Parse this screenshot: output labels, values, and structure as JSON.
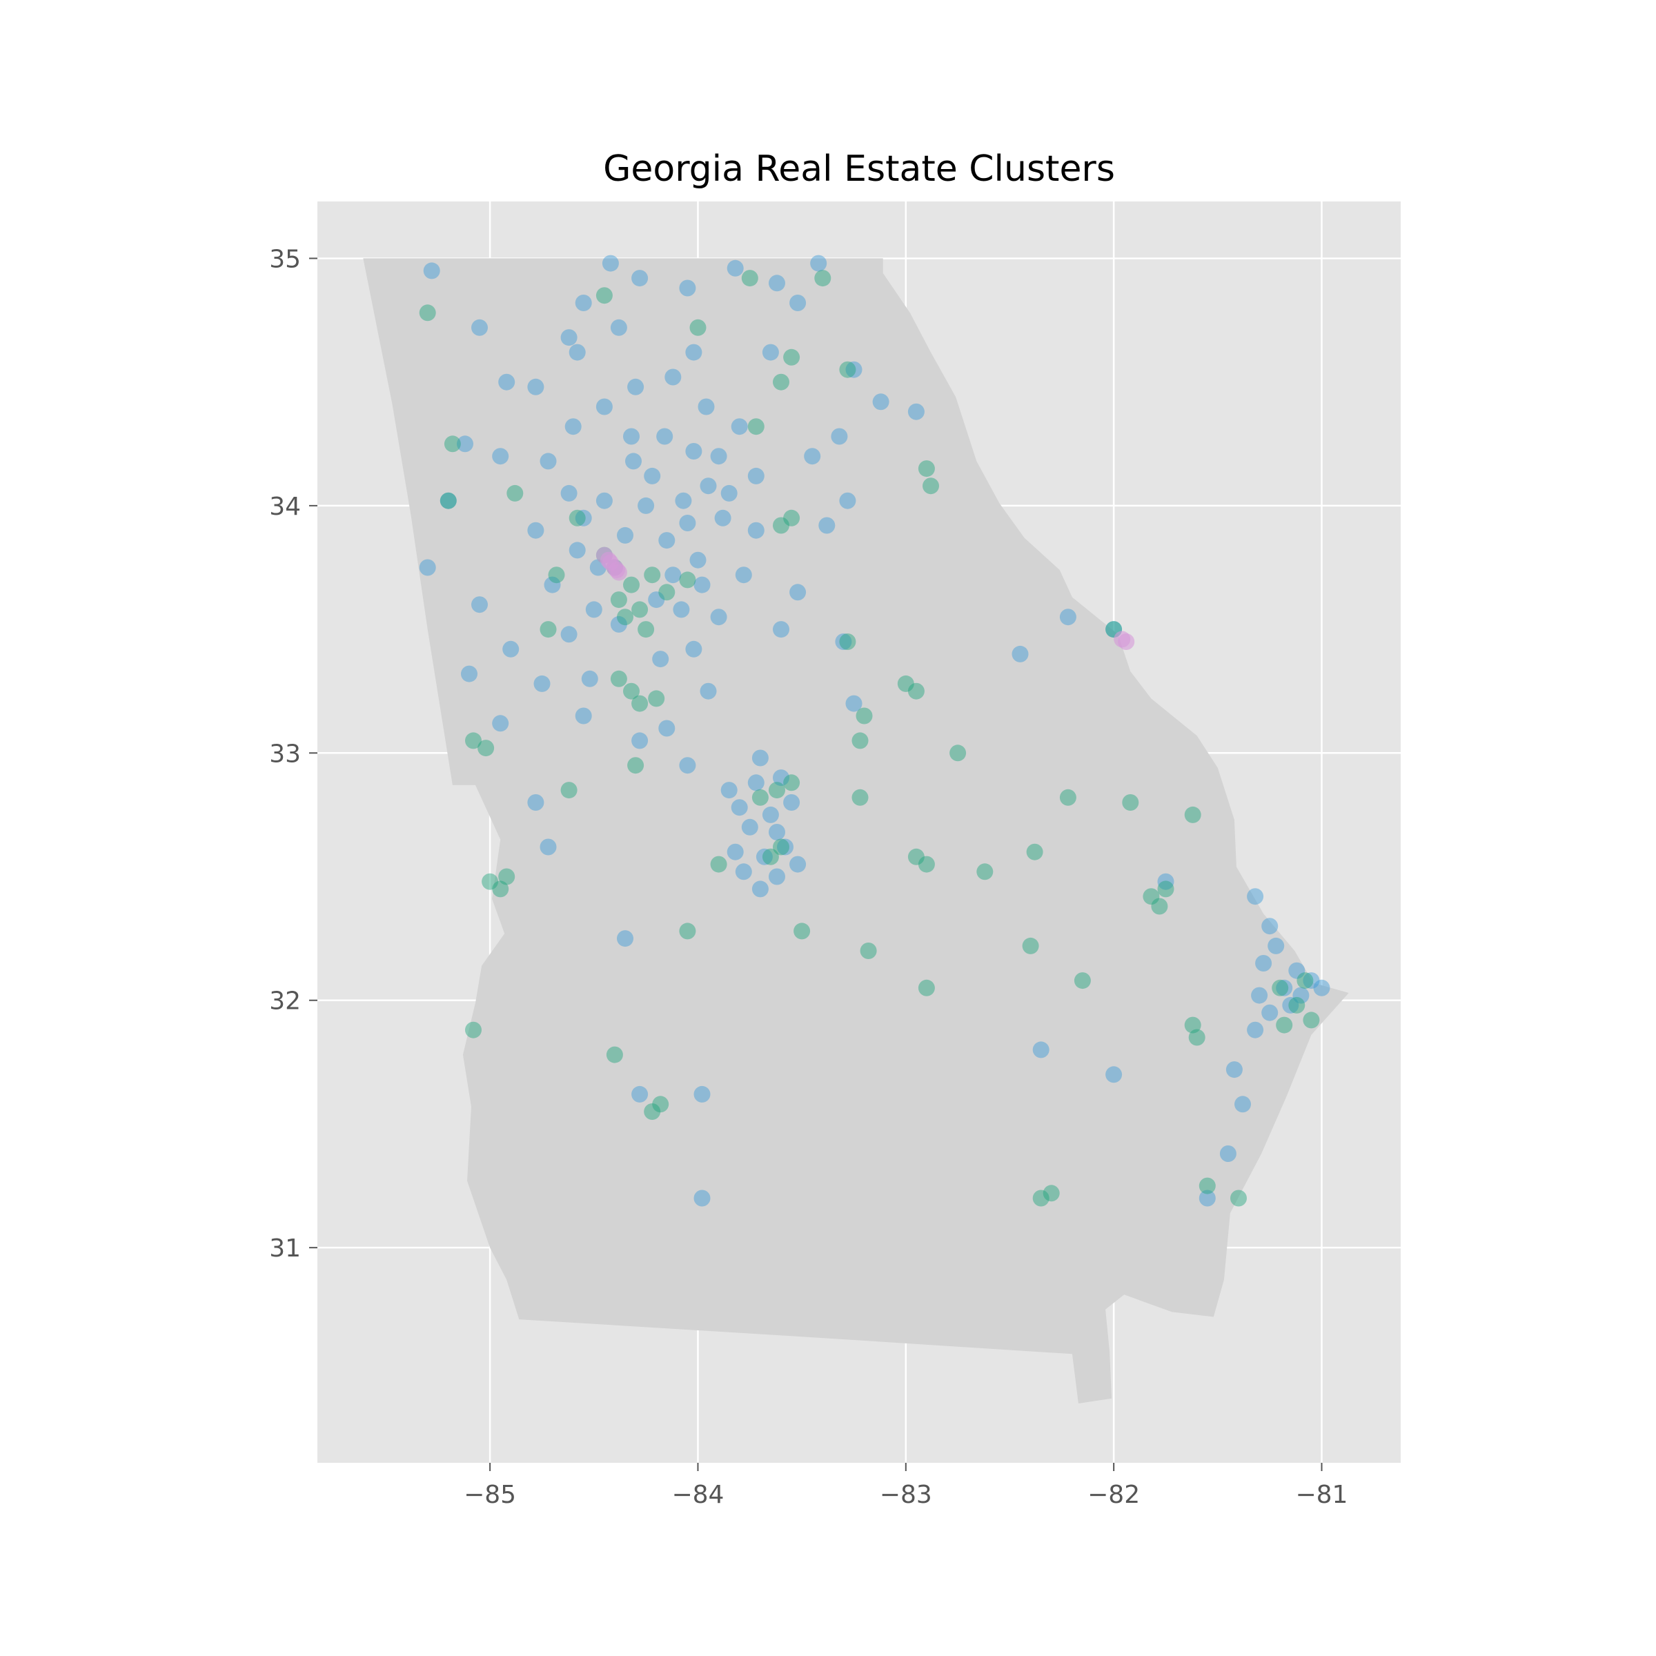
{
  "chart_data": {
    "type": "scatter",
    "title": "Georgia Real Estate Clusters",
    "xlabel": "",
    "ylabel": "",
    "xlim": [
      -85.83,
      -80.62
    ],
    "ylim": [
      30.13,
      35.23
    ],
    "xticks": [
      -85,
      -84,
      -83,
      -82,
      -81
    ],
    "yticks": [
      31,
      32,
      33,
      34,
      35
    ],
    "xtick_labels": [
      "−85",
      "−84",
      "−83",
      "−82",
      "−81"
    ],
    "ytick_labels": [
      "31",
      "32",
      "33",
      "34",
      "35"
    ],
    "grid": true,
    "legend": "none",
    "colors": {
      "background": "#e5e5e5",
      "state_fill": "#d3d3d3",
      "grid": "#ffffff",
      "cluster_blue": "#3a98d8",
      "cluster_green": "#1fa37c",
      "cluster_pink": "#d59ad9"
    },
    "state_outline": [
      [
        -85.61,
        35.0
      ],
      [
        -83.11,
        35.0
      ],
      [
        -83.11,
        34.94
      ],
      [
        -82.98,
        34.78
      ],
      [
        -82.88,
        34.62
      ],
      [
        -82.76,
        34.44
      ],
      [
        -82.66,
        34.18
      ],
      [
        -82.55,
        34.01
      ],
      [
        -82.43,
        33.87
      ],
      [
        -82.26,
        33.74
      ],
      [
        -82.2,
        33.63
      ],
      [
        -81.98,
        33.48
      ],
      [
        -81.92,
        33.33
      ],
      [
        -81.82,
        33.22
      ],
      [
        -81.6,
        33.07
      ],
      [
        -81.5,
        32.94
      ],
      [
        -81.42,
        32.73
      ],
      [
        -81.41,
        32.54
      ],
      [
        -81.28,
        32.35
      ],
      [
        -81.13,
        32.2
      ],
      [
        -81.04,
        32.07
      ],
      [
        -80.87,
        32.03
      ],
      [
        -81.05,
        31.86
      ],
      [
        -81.17,
        31.61
      ],
      [
        -81.29,
        31.38
      ],
      [
        -81.44,
        31.14
      ],
      [
        -81.47,
        30.87
      ],
      [
        -81.52,
        30.72
      ],
      [
        -81.72,
        30.74
      ],
      [
        -81.95,
        30.81
      ],
      [
        -82.04,
        30.75
      ],
      [
        -82.02,
        30.58
      ],
      [
        -82.01,
        30.39
      ],
      [
        -82.17,
        30.37
      ],
      [
        -82.2,
        30.57
      ],
      [
        -83.5,
        30.64
      ],
      [
        -84.86,
        30.71
      ],
      [
        -84.92,
        30.87
      ],
      [
        -85.0,
        31.0
      ],
      [
        -85.11,
        31.27
      ],
      [
        -85.09,
        31.57
      ],
      [
        -85.13,
        31.78
      ],
      [
        -85.07,
        31.99
      ],
      [
        -85.04,
        32.14
      ],
      [
        -84.93,
        32.27
      ],
      [
        -84.99,
        32.41
      ],
      [
        -84.95,
        32.65
      ],
      [
        -85.07,
        32.87
      ],
      [
        -85.18,
        32.87
      ],
      [
        -85.3,
        33.5
      ],
      [
        -85.38,
        33.96
      ],
      [
        -85.47,
        34.41
      ],
      [
        -85.61,
        35.0
      ]
    ],
    "series": [
      {
        "color": "blue",
        "points": [
          [
            -84.22,
            34.12
          ],
          [
            -84.07,
            34.02
          ],
          [
            -83.95,
            34.08
          ],
          [
            -84.05,
            33.93
          ],
          [
            -84.15,
            33.86
          ],
          [
            -84.0,
            33.78
          ],
          [
            -83.88,
            33.95
          ],
          [
            -84.25,
            34.0
          ],
          [
            -84.35,
            33.88
          ],
          [
            -84.31,
            34.18
          ],
          [
            -84.16,
            34.28
          ],
          [
            -84.02,
            34.22
          ],
          [
            -83.9,
            34.2
          ],
          [
            -83.85,
            34.05
          ],
          [
            -84.45,
            34.02
          ],
          [
            -84.55,
            33.95
          ],
          [
            -84.62,
            34.05
          ],
          [
            -84.58,
            33.82
          ],
          [
            -84.48,
            33.75
          ],
          [
            -84.12,
            33.72
          ],
          [
            -83.98,
            33.68
          ],
          [
            -84.08,
            33.58
          ],
          [
            -84.2,
            33.62
          ],
          [
            -84.38,
            33.52
          ],
          [
            -84.5,
            33.58
          ],
          [
            -84.62,
            33.48
          ],
          [
            -84.7,
            33.68
          ],
          [
            -84.78,
            33.9
          ],
          [
            -84.72,
            34.18
          ],
          [
            -84.6,
            34.32
          ],
          [
            -84.45,
            34.4
          ],
          [
            -84.3,
            34.48
          ],
          [
            -84.12,
            34.52
          ],
          [
            -83.96,
            34.4
          ],
          [
            -83.8,
            34.32
          ],
          [
            -83.72,
            34.12
          ],
          [
            -83.72,
            33.9
          ],
          [
            -83.78,
            33.72
          ],
          [
            -83.9,
            33.55
          ],
          [
            -84.02,
            33.42
          ],
          [
            -84.18,
            33.38
          ],
          [
            -84.02,
            34.62
          ],
          [
            -84.38,
            34.72
          ],
          [
            -84.58,
            34.62
          ],
          [
            -84.92,
            34.5
          ],
          [
            -84.95,
            34.2
          ],
          [
            -85.12,
            34.25
          ],
          [
            -85.2,
            34.02
          ],
          [
            -85.3,
            33.75
          ],
          [
            -85.05,
            33.6
          ],
          [
            -84.9,
            33.42
          ],
          [
            -84.75,
            33.28
          ],
          [
            -84.95,
            33.12
          ],
          [
            -84.55,
            33.15
          ],
          [
            -84.15,
            33.1
          ],
          [
            -83.95,
            33.25
          ],
          [
            -83.6,
            33.5
          ],
          [
            -83.52,
            33.65
          ],
          [
            -83.3,
            33.45
          ],
          [
            -83.38,
            33.92
          ],
          [
            -83.28,
            34.02
          ],
          [
            -83.45,
            34.2
          ],
          [
            -83.32,
            34.28
          ],
          [
            -83.12,
            34.42
          ],
          [
            -82.95,
            34.38
          ],
          [
            -83.25,
            34.55
          ],
          [
            -83.65,
            34.62
          ],
          [
            -83.52,
            34.82
          ],
          [
            -83.42,
            34.98
          ],
          [
            -83.62,
            34.9
          ],
          [
            -83.82,
            34.96
          ],
          [
            -84.05,
            34.88
          ],
          [
            -84.28,
            34.92
          ],
          [
            -84.42,
            34.98
          ],
          [
            -84.55,
            34.82
          ],
          [
            -85.28,
            34.95
          ],
          [
            -85.05,
            34.72
          ],
          [
            -84.78,
            34.48
          ],
          [
            -84.62,
            34.68
          ],
          [
            -84.32,
            34.28
          ],
          [
            -83.72,
            32.88
          ],
          [
            -83.65,
            32.75
          ],
          [
            -83.68,
            32.58
          ],
          [
            -83.62,
            32.5
          ],
          [
            -83.58,
            32.62
          ],
          [
            -83.75,
            32.7
          ],
          [
            -83.55,
            32.8
          ],
          [
            -83.78,
            32.52
          ],
          [
            -83.7,
            32.45
          ],
          [
            -83.82,
            32.6
          ],
          [
            -83.62,
            32.68
          ],
          [
            -83.6,
            32.9
          ],
          [
            -83.85,
            32.85
          ],
          [
            -83.52,
            32.55
          ],
          [
            -83.8,
            32.78
          ],
          [
            -83.7,
            32.98
          ],
          [
            -81.18,
            32.05
          ],
          [
            -81.1,
            32.02
          ],
          [
            -81.25,
            31.95
          ],
          [
            -81.05,
            32.08
          ],
          [
            -81.28,
            32.15
          ],
          [
            -81.22,
            32.22
          ],
          [
            -81.15,
            31.98
          ],
          [
            -81.3,
            32.02
          ],
          [
            -81.12,
            32.12
          ],
          [
            -81.0,
            32.05
          ],
          [
            -81.32,
            31.88
          ],
          [
            -81.42,
            31.72
          ],
          [
            -81.55,
            31.2
          ],
          [
            -81.45,
            31.38
          ],
          [
            -81.38,
            31.58
          ],
          [
            -81.25,
            32.3
          ],
          [
            -81.32,
            32.42
          ],
          [
            -81.75,
            32.48
          ],
          [
            -82.0,
            33.5
          ],
          [
            -82.22,
            33.55
          ],
          [
            -82.45,
            33.4
          ],
          [
            -83.25,
            33.2
          ],
          [
            -82.35,
            31.8
          ],
          [
            -82.0,
            31.7
          ],
          [
            -84.52,
            33.3
          ],
          [
            -84.28,
            33.05
          ],
          [
            -84.05,
            32.95
          ],
          [
            -85.1,
            33.32
          ],
          [
            -84.78,
            32.8
          ],
          [
            -84.72,
            32.62
          ],
          [
            -83.98,
            31.62
          ],
          [
            -84.28,
            31.62
          ],
          [
            -83.98,
            31.2
          ],
          [
            -84.35,
            32.25
          ]
        ]
      },
      {
        "color": "green",
        "points": [
          [
            -84.32,
            33.68
          ],
          [
            -84.22,
            33.72
          ],
          [
            -84.38,
            33.62
          ],
          [
            -84.4,
            33.75
          ],
          [
            -84.28,
            33.58
          ],
          [
            -84.15,
            33.65
          ],
          [
            -84.45,
            33.8
          ],
          [
            -84.05,
            33.7
          ],
          [
            -84.25,
            33.5
          ],
          [
            -84.35,
            33.55
          ],
          [
            -84.32,
            33.25
          ],
          [
            -84.28,
            33.2
          ],
          [
            -84.2,
            33.22
          ],
          [
            -84.38,
            33.3
          ],
          [
            -84.58,
            33.95
          ],
          [
            -84.68,
            33.72
          ],
          [
            -83.55,
            33.95
          ],
          [
            -83.6,
            33.92
          ],
          [
            -83.28,
            33.45
          ],
          [
            -83.2,
            33.15
          ],
          [
            -83.22,
            33.05
          ],
          [
            -83.0,
            33.28
          ],
          [
            -82.95,
            33.25
          ],
          [
            -83.62,
            32.85
          ],
          [
            -83.7,
            32.82
          ],
          [
            -83.55,
            32.88
          ],
          [
            -83.6,
            32.62
          ],
          [
            -83.65,
            32.58
          ],
          [
            -83.9,
            32.55
          ],
          [
            -82.9,
            32.55
          ],
          [
            -82.95,
            32.58
          ],
          [
            -81.82,
            32.42
          ],
          [
            -81.78,
            32.38
          ],
          [
            -81.75,
            32.45
          ],
          [
            -81.2,
            32.05
          ],
          [
            -81.12,
            31.98
          ],
          [
            -81.08,
            32.08
          ],
          [
            -81.05,
            31.92
          ],
          [
            -81.18,
            31.9
          ],
          [
            -81.6,
            31.85
          ],
          [
            -81.62,
            31.9
          ],
          [
            -82.3,
            31.22
          ],
          [
            -82.35,
            31.2
          ],
          [
            -81.55,
            31.25
          ],
          [
            -81.4,
            31.2
          ],
          [
            -84.18,
            31.58
          ],
          [
            -84.22,
            31.55
          ],
          [
            -84.95,
            32.45
          ],
          [
            -84.92,
            32.5
          ],
          [
            -85.0,
            32.48
          ],
          [
            -85.08,
            33.05
          ],
          [
            -85.02,
            33.02
          ],
          [
            -85.18,
            34.25
          ],
          [
            -85.2,
            34.02
          ],
          [
            -84.45,
            34.85
          ],
          [
            -84.0,
            34.72
          ],
          [
            -83.75,
            34.92
          ],
          [
            -83.6,
            34.5
          ],
          [
            -83.28,
            34.55
          ],
          [
            -83.55,
            34.6
          ],
          [
            -83.4,
            34.92
          ],
          [
            -83.72,
            34.32
          ],
          [
            -82.9,
            34.15
          ],
          [
            -82.88,
            34.08
          ],
          [
            -82.22,
            32.82
          ],
          [
            -81.92,
            32.8
          ],
          [
            -81.62,
            32.75
          ],
          [
            -82.4,
            32.22
          ],
          [
            -83.18,
            32.2
          ],
          [
            -82.9,
            32.05
          ],
          [
            -84.4,
            31.78
          ],
          [
            -85.08,
            31.88
          ],
          [
            -82.15,
            32.08
          ],
          [
            -84.3,
            32.95
          ],
          [
            -84.62,
            32.85
          ],
          [
            -84.72,
            33.5
          ],
          [
            -85.3,
            34.78
          ],
          [
            -84.88,
            34.05
          ],
          [
            -82.0,
            33.5
          ],
          [
            -82.38,
            32.6
          ],
          [
            -82.62,
            32.52
          ],
          [
            -83.5,
            32.28
          ],
          [
            -84.05,
            32.28
          ],
          [
            -83.22,
            32.82
          ],
          [
            -82.75,
            33.0
          ]
        ]
      },
      {
        "color": "pink",
        "points": [
          [
            -84.45,
            33.8
          ],
          [
            -84.42,
            33.77
          ],
          [
            -84.4,
            33.75
          ],
          [
            -84.38,
            33.73
          ],
          [
            -84.43,
            33.78
          ],
          [
            -84.39,
            33.74
          ],
          [
            -81.96,
            33.46
          ],
          [
            -81.94,
            33.45
          ]
        ]
      }
    ]
  }
}
